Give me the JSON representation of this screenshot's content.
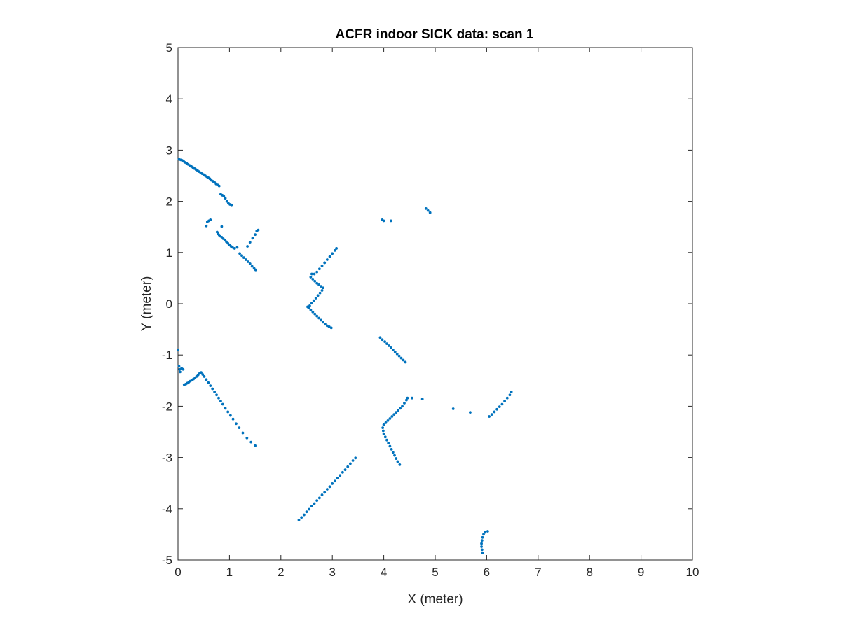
{
  "chart_data": {
    "type": "scatter",
    "title": "ACFR indoor SICK data: scan 1",
    "xlabel": "X (meter)",
    "ylabel": "Y (meter)",
    "xlim": [
      0,
      10
    ],
    "ylim": [
      -5,
      5
    ],
    "xticks": [
      "0",
      "1",
      "2",
      "3",
      "4",
      "5",
      "6",
      "7",
      "8",
      "9",
      "10"
    ],
    "yticks": [
      "-5",
      "-4",
      "-3",
      "-2",
      "-1",
      "0",
      "1",
      "2",
      "3",
      "4",
      "5"
    ],
    "grid": false,
    "legend": "none",
    "marker_color": "#0072BD",
    "series": [
      {
        "points": [
          [
            0.02,
            2.82
          ],
          [
            0.05,
            2.81
          ],
          [
            0.08,
            2.8
          ],
          [
            0.11,
            2.78
          ],
          [
            0.14,
            2.76
          ],
          [
            0.17,
            2.74
          ],
          [
            0.2,
            2.72
          ],
          [
            0.23,
            2.7
          ],
          [
            0.26,
            2.68
          ],
          [
            0.29,
            2.66
          ],
          [
            0.32,
            2.64
          ],
          [
            0.35,
            2.62
          ],
          [
            0.38,
            2.6
          ],
          [
            0.41,
            2.58
          ],
          [
            0.44,
            2.56
          ],
          [
            0.47,
            2.54
          ],
          [
            0.5,
            2.52
          ],
          [
            0.53,
            2.5
          ],
          [
            0.56,
            2.48
          ],
          [
            0.59,
            2.46
          ],
          [
            0.62,
            2.44
          ],
          [
            0.65,
            2.41
          ],
          [
            0.68,
            2.39
          ],
          [
            0.71,
            2.37
          ],
          [
            0.74,
            2.34
          ],
          [
            0.77,
            2.32
          ],
          [
            0.8,
            2.3
          ],
          [
            0.83,
            2.14
          ],
          [
            0.86,
            2.12
          ],
          [
            0.89,
            2.1
          ],
          [
            0.92,
            2.06
          ],
          [
            0.95,
            2.0
          ],
          [
            0.98,
            1.96
          ],
          [
            1.01,
            1.94
          ],
          [
            1.04,
            1.93
          ],
          [
            0.55,
            1.52
          ],
          [
            0.57,
            1.6
          ],
          [
            0.6,
            1.62
          ],
          [
            0.63,
            1.64
          ],
          [
            0.85,
            1.51
          ],
          [
            0.76,
            1.4
          ],
          [
            0.78,
            1.37
          ],
          [
            0.8,
            1.34
          ],
          [
            0.82,
            1.32
          ],
          [
            0.85,
            1.3
          ],
          [
            0.88,
            1.27
          ],
          [
            0.91,
            1.24
          ],
          [
            0.94,
            1.21
          ],
          [
            0.97,
            1.18
          ],
          [
            1.0,
            1.15
          ],
          [
            1.03,
            1.12
          ],
          [
            1.06,
            1.1
          ],
          [
            1.1,
            1.08
          ],
          [
            1.15,
            1.1
          ],
          [
            1.2,
            0.98
          ],
          [
            1.24,
            0.94
          ],
          [
            1.28,
            0.9
          ],
          [
            1.32,
            0.86
          ],
          [
            1.36,
            0.82
          ],
          [
            1.4,
            0.78
          ],
          [
            1.44,
            0.73
          ],
          [
            1.48,
            0.69
          ],
          [
            1.51,
            0.66
          ],
          [
            1.35,
            1.12
          ],
          [
            1.4,
            1.2
          ],
          [
            1.45,
            1.28
          ],
          [
            1.5,
            1.35
          ],
          [
            1.53,
            1.42
          ],
          [
            1.56,
            1.44
          ],
          [
            2.6,
            0.58
          ],
          [
            2.65,
            0.58
          ],
          [
            2.7,
            0.62
          ],
          [
            2.75,
            0.68
          ],
          [
            2.8,
            0.74
          ],
          [
            2.85,
            0.8
          ],
          [
            2.9,
            0.86
          ],
          [
            2.95,
            0.92
          ],
          [
            3.0,
            0.98
          ],
          [
            3.05,
            1.04
          ],
          [
            3.08,
            1.08
          ],
          [
            2.58,
            0.52
          ],
          [
            2.62,
            0.48
          ],
          [
            2.66,
            0.44
          ],
          [
            2.7,
            0.4
          ],
          [
            2.74,
            0.37
          ],
          [
            2.78,
            0.34
          ],
          [
            2.82,
            0.31
          ],
          [
            2.8,
            0.26
          ],
          [
            2.76,
            0.21
          ],
          [
            2.72,
            0.16
          ],
          [
            2.68,
            0.11
          ],
          [
            2.64,
            0.06
          ],
          [
            2.6,
            0.01
          ],
          [
            2.56,
            -0.04
          ],
          [
            2.52,
            -0.06
          ],
          [
            2.54,
            -0.08
          ],
          [
            2.58,
            -0.12
          ],
          [
            2.62,
            -0.16
          ],
          [
            2.66,
            -0.2
          ],
          [
            2.7,
            -0.24
          ],
          [
            2.74,
            -0.28
          ],
          [
            2.78,
            -0.32
          ],
          [
            2.82,
            -0.36
          ],
          [
            2.86,
            -0.4
          ],
          [
            2.9,
            -0.43
          ],
          [
            2.94,
            -0.45
          ],
          [
            2.98,
            -0.47
          ],
          [
            3.93,
            -0.66
          ],
          [
            3.97,
            -0.7
          ],
          [
            4.02,
            -0.74
          ],
          [
            4.06,
            -0.78
          ],
          [
            4.1,
            -0.82
          ],
          [
            4.14,
            -0.86
          ],
          [
            4.18,
            -0.9
          ],
          [
            4.22,
            -0.94
          ],
          [
            4.26,
            -0.98
          ],
          [
            4.3,
            -1.02
          ],
          [
            4.34,
            -1.06
          ],
          [
            4.38,
            -1.1
          ],
          [
            4.42,
            -1.14
          ],
          [
            3.97,
            1.64
          ],
          [
            4.0,
            1.62
          ],
          [
            4.14,
            1.62
          ],
          [
            4.82,
            1.86
          ],
          [
            4.86,
            1.82
          ],
          [
            4.9,
            1.78
          ],
          [
            0.0,
            -0.9
          ],
          [
            0.02,
            -1.22
          ],
          [
            0.03,
            -1.28
          ],
          [
            0.04,
            -1.33
          ],
          [
            0.07,
            -1.26
          ],
          [
            0.1,
            -1.28
          ],
          [
            0.12,
            -1.58
          ],
          [
            0.15,
            -1.57
          ],
          [
            0.18,
            -1.55
          ],
          [
            0.21,
            -1.53
          ],
          [
            0.24,
            -1.51
          ],
          [
            0.27,
            -1.49
          ],
          [
            0.3,
            -1.47
          ],
          [
            0.33,
            -1.45
          ],
          [
            0.36,
            -1.42
          ],
          [
            0.39,
            -1.39
          ],
          [
            0.42,
            -1.36
          ],
          [
            0.45,
            -1.34
          ],
          [
            0.48,
            -1.38
          ],
          [
            0.51,
            -1.42
          ],
          [
            0.55,
            -1.48
          ],
          [
            0.59,
            -1.54
          ],
          [
            0.63,
            -1.6
          ],
          [
            0.67,
            -1.66
          ],
          [
            0.71,
            -1.72
          ],
          [
            0.75,
            -1.78
          ],
          [
            0.79,
            -1.84
          ],
          [
            0.83,
            -1.9
          ],
          [
            0.87,
            -1.96
          ],
          [
            0.92,
            -2.04
          ],
          [
            0.97,
            -2.11
          ],
          [
            1.02,
            -2.18
          ],
          [
            1.07,
            -2.25
          ],
          [
            1.13,
            -2.34
          ],
          [
            1.19,
            -2.42
          ],
          [
            1.26,
            -2.52
          ],
          [
            1.34,
            -2.62
          ],
          [
            1.42,
            -2.7
          ],
          [
            1.5,
            -2.77
          ],
          [
            2.35,
            -4.22
          ],
          [
            2.4,
            -4.17
          ],
          [
            2.45,
            -4.12
          ],
          [
            2.5,
            -4.06
          ],
          [
            2.55,
            -4.01
          ],
          [
            2.6,
            -3.95
          ],
          [
            2.65,
            -3.9
          ],
          [
            2.7,
            -3.84
          ],
          [
            2.75,
            -3.79
          ],
          [
            2.8,
            -3.73
          ],
          [
            2.85,
            -3.68
          ],
          [
            2.9,
            -3.62
          ],
          [
            2.95,
            -3.57
          ],
          [
            3.0,
            -3.51
          ],
          [
            3.05,
            -3.46
          ],
          [
            3.1,
            -3.4
          ],
          [
            3.15,
            -3.35
          ],
          [
            3.2,
            -3.29
          ],
          [
            3.25,
            -3.24
          ],
          [
            3.3,
            -3.18
          ],
          [
            3.35,
            -3.12
          ],
          [
            3.4,
            -3.06
          ],
          [
            3.45,
            -3.01
          ],
          [
            4.0,
            -2.36
          ],
          [
            4.04,
            -2.32
          ],
          [
            4.08,
            -2.28
          ],
          [
            4.12,
            -2.24
          ],
          [
            4.16,
            -2.2
          ],
          [
            4.2,
            -2.16
          ],
          [
            4.24,
            -2.12
          ],
          [
            4.28,
            -2.08
          ],
          [
            4.32,
            -2.04
          ],
          [
            4.36,
            -2.0
          ],
          [
            4.4,
            -1.94
          ],
          [
            4.44,
            -1.88
          ],
          [
            4.46,
            -1.84
          ],
          [
            4.55,
            -1.84
          ],
          [
            4.75,
            -1.86
          ],
          [
            3.98,
            -2.42
          ],
          [
            3.99,
            -2.48
          ],
          [
            4.0,
            -2.54
          ],
          [
            4.03,
            -2.6
          ],
          [
            4.06,
            -2.66
          ],
          [
            4.09,
            -2.72
          ],
          [
            4.12,
            -2.78
          ],
          [
            4.15,
            -2.84
          ],
          [
            4.18,
            -2.9
          ],
          [
            4.21,
            -2.96
          ],
          [
            4.24,
            -3.02
          ],
          [
            4.27,
            -3.08
          ],
          [
            4.31,
            -3.14
          ],
          [
            5.35,
            -2.05
          ],
          [
            5.68,
            -2.12
          ],
          [
            6.05,
            -2.2
          ],
          [
            6.1,
            -2.16
          ],
          [
            6.15,
            -2.11
          ],
          [
            6.2,
            -2.06
          ],
          [
            6.25,
            -2.01
          ],
          [
            6.3,
            -1.96
          ],
          [
            6.35,
            -1.9
          ],
          [
            6.4,
            -1.84
          ],
          [
            6.45,
            -1.78
          ],
          [
            6.48,
            -1.72
          ],
          [
            5.92,
            -4.86
          ],
          [
            5.91,
            -4.8
          ],
          [
            5.9,
            -4.74
          ],
          [
            5.9,
            -4.68
          ],
          [
            5.91,
            -4.62
          ],
          [
            5.92,
            -4.56
          ],
          [
            5.94,
            -4.5
          ],
          [
            5.97,
            -4.46
          ],
          [
            6.02,
            -4.44
          ]
        ]
      }
    ]
  }
}
